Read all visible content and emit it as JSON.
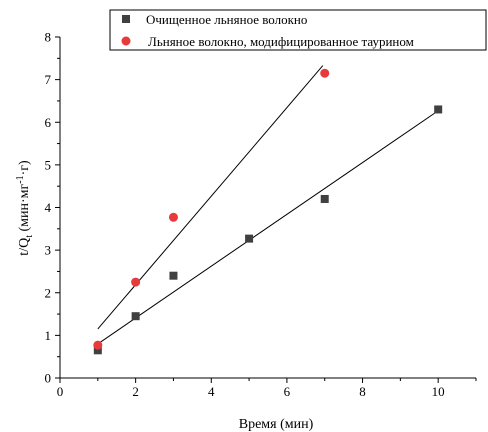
{
  "chart_data": {
    "type": "scatter",
    "title": "",
    "xlabel": "Время (мин)",
    "ylabel_main": "t/Q",
    "ylabel_sub": "t",
    "ylabel_units": "(мин·мг",
    "ylabel_exp": "-1",
    "ylabel_units_end": "·г)",
    "xlim": [
      0,
      11
    ],
    "ylim": [
      0,
      8
    ],
    "xticks": [
      "0",
      "2",
      "4",
      "6",
      "8",
      "10"
    ],
    "yticks": [
      "0",
      "1",
      "2",
      "3",
      "4",
      "5",
      "6",
      "7",
      "8"
    ],
    "legend_position": "top-right",
    "series": [
      {
        "name": "Очищенное льняное волокно",
        "marker": "square",
        "color": "#404040",
        "x": [
          1,
          2,
          3,
          5,
          7,
          10
        ],
        "y": [
          0.65,
          1.45,
          2.4,
          3.27,
          4.2,
          6.3
        ],
        "fit_line": {
          "x": [
            1,
            10
          ],
          "y": [
            0.8,
            6.27
          ]
        }
      },
      {
        "name": "Льняное волокно, модифицированное таурином",
        "marker": "circle",
        "color": "#e83a3a",
        "x": [
          1,
          2,
          3,
          7
        ],
        "y": [
          0.77,
          2.25,
          3.77,
          7.15
        ],
        "fit_line": {
          "x": [
            1,
            6.95
          ],
          "y": [
            1.15,
            7.33
          ]
        }
      }
    ]
  }
}
